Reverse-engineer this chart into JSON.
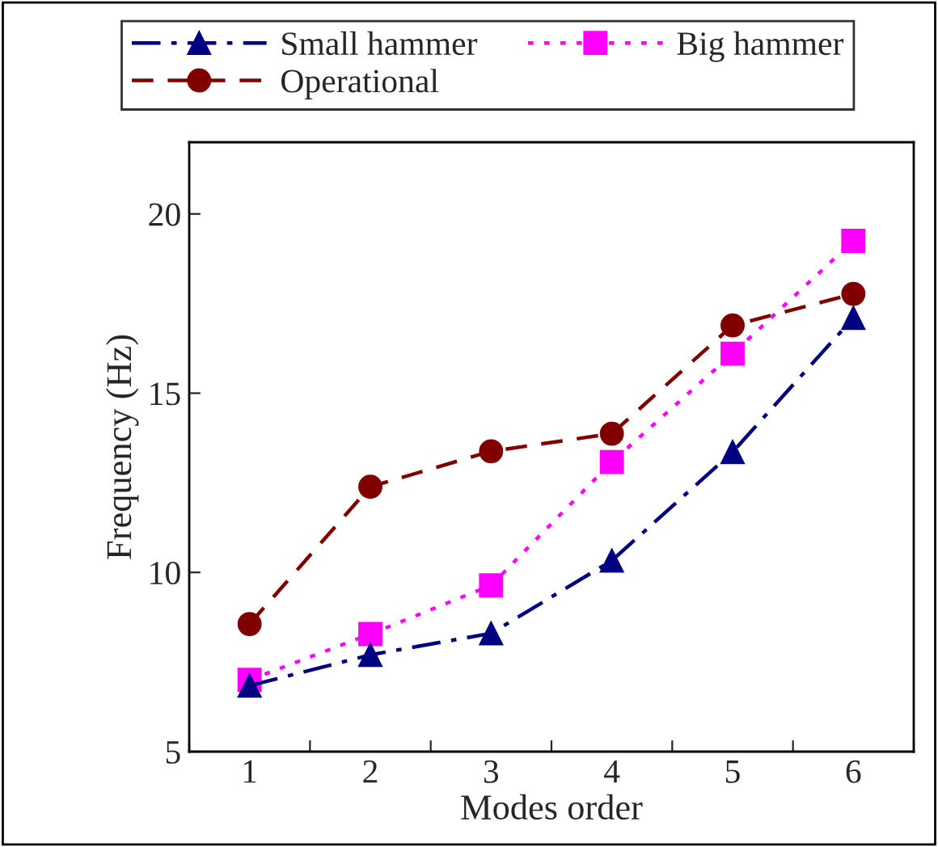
{
  "chart_data": {
    "type": "line",
    "xlabel": "Modes order",
    "ylabel": "Frequency (Hz)",
    "categories": [
      "1",
      "2",
      "3",
      "4",
      "5",
      "6"
    ],
    "series": [
      {
        "name": "Small hammer",
        "color": "#000080",
        "marker": "triangle",
        "line_style": "dashdot",
        "values": [
          6.84,
          7.7,
          8.3,
          10.33,
          13.36,
          17.1
        ]
      },
      {
        "name": "Big hammer",
        "color": "#ff00ff",
        "marker": "square",
        "line_style": "dotted",
        "values": [
          7.0,
          8.28,
          9.64,
          13.08,
          16.1,
          19.25
        ]
      },
      {
        "name": "Operational",
        "color": "#800000",
        "marker": "circle",
        "line_style": "dashed",
        "values": [
          8.56,
          12.39,
          13.38,
          13.87,
          16.89,
          17.77
        ]
      }
    ],
    "ylim": [
      5,
      22
    ],
    "yticks": [
      5,
      10,
      15,
      20
    ],
    "grid": false,
    "legend": "top"
  }
}
